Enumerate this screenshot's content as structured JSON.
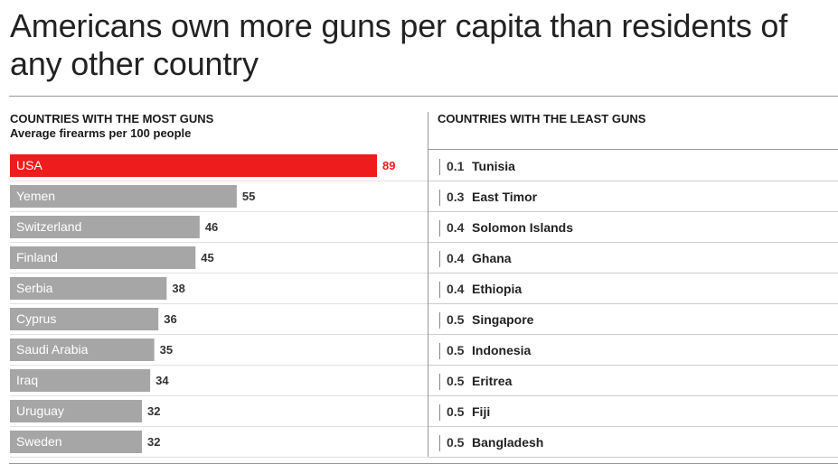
{
  "title": "Americans own more guns per capita than residents of any other country",
  "left_header": "COUNTRIES WITH THE MOST GUNS",
  "left_subheader": "Average firearms per 100 people",
  "right_header": "COUNTRIES WITH THE LEAST GUNS",
  "colors": {
    "highlight": "#ee1c1c",
    "bar": "#a6a6a6",
    "label": "#ffffff",
    "value": "#333333"
  },
  "chart_data": [
    {
      "type": "bar",
      "orientation": "horizontal",
      "title": "COUNTRIES WITH THE MOST GUNS",
      "subtitle": "Average firearms per 100 people",
      "categories": [
        "USA",
        "Yemen",
        "Switzerland",
        "Finland",
        "Serbia",
        "Cyprus",
        "Saudi Arabia",
        "Iraq",
        "Uruguay",
        "Sweden"
      ],
      "values": [
        89,
        55,
        46,
        45,
        38,
        36,
        35,
        34,
        32,
        32
      ],
      "highlight": "USA",
      "xlim": [
        0,
        89
      ]
    },
    {
      "type": "table",
      "title": "COUNTRIES WITH THE LEAST GUNS",
      "categories": [
        "Tunisia",
        "East Timor",
        "Solomon Islands",
        "Ghana",
        "Ethiopia",
        "Singapore",
        "Indonesia",
        "Eritrea",
        "Fiji",
        "Bangladesh"
      ],
      "values": [
        0.1,
        0.3,
        0.4,
        0.4,
        0.4,
        0.5,
        0.5,
        0.5,
        0.5,
        0.5
      ]
    }
  ]
}
